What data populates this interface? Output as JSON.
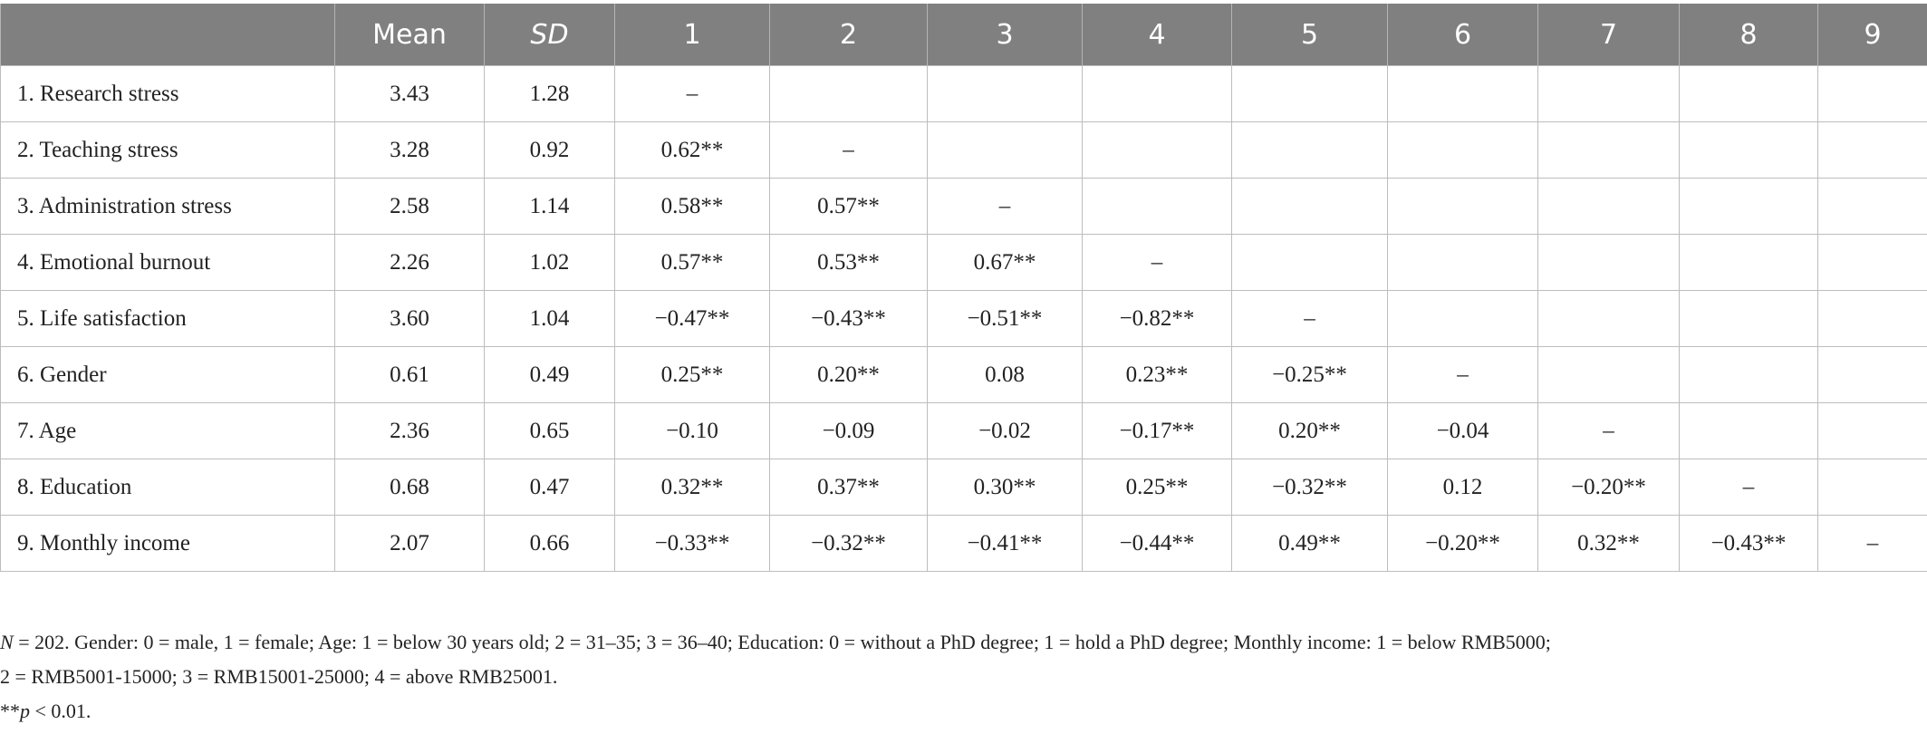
{
  "table": {
    "columns": [
      "Mean",
      "SD",
      "1",
      "2",
      "3",
      "4",
      "5",
      "6",
      "7",
      "8",
      "9"
    ],
    "rows": [
      {
        "label": "1. Research stress",
        "mean": "3.43",
        "sd": "1.28",
        "cells": [
          "–"
        ]
      },
      {
        "label": "2. Teaching stress",
        "mean": "3.28",
        "sd": "0.92",
        "cells": [
          "0.62**",
          "–"
        ]
      },
      {
        "label": "3. Administration stress",
        "mean": "2.58",
        "sd": "1.14",
        "cells": [
          "0.58**",
          "0.57**",
          "–"
        ]
      },
      {
        "label": "4. Emotional burnout",
        "mean": "2.26",
        "sd": "1.02",
        "cells": [
          "0.57**",
          "0.53**",
          "0.67**",
          "–"
        ]
      },
      {
        "label": "5. Life satisfaction",
        "mean": "3.60",
        "sd": "1.04",
        "cells": [
          "−0.47**",
          "−0.43**",
          "−0.51**",
          "−0.82**",
          "–"
        ]
      },
      {
        "label": "6. Gender",
        "mean": "0.61",
        "sd": "0.49",
        "cells": [
          "0.25**",
          "0.20**",
          "0.08",
          "0.23**",
          "−0.25**",
          "–"
        ]
      },
      {
        "label": "7. Age",
        "mean": "2.36",
        "sd": "0.65",
        "cells": [
          "−0.10",
          "−0.09",
          "−0.02",
          "−0.17**",
          "0.20**",
          "−0.04",
          "–"
        ]
      },
      {
        "label": "8. Education",
        "mean": "0.68",
        "sd": "0.47",
        "cells": [
          "0.32**",
          "0.37**",
          "0.30**",
          "0.25**",
          "−0.32**",
          "0.12",
          "−0.20**",
          "–"
        ]
      },
      {
        "label": "9. Monthly income",
        "mean": "2.07",
        "sd": "0.66",
        "cells": [
          "−0.33**",
          "−0.32**",
          "−0.41**",
          "−0.44**",
          "0.49**",
          "−0.20**",
          "0.32**",
          "−0.43**",
          "–"
        ]
      }
    ]
  },
  "notes": {
    "n_symbol": "N",
    "line1": " = 202. Gender: 0 = male, 1 = female; Age: 1 = below 30 years old; 2 = 31–35; 3 = 36–40; Education: 0 = without a PhD degree; 1 = hold a PhD degree; Monthly income: 1 = below RMB5000;",
    "line2": "2 = RMB5001-15000; 3 = RMB15001-25000; 4 = above RMB25001.",
    "sig_stars": "**",
    "p_symbol": "p",
    "sig_text": " < 0.01."
  }
}
